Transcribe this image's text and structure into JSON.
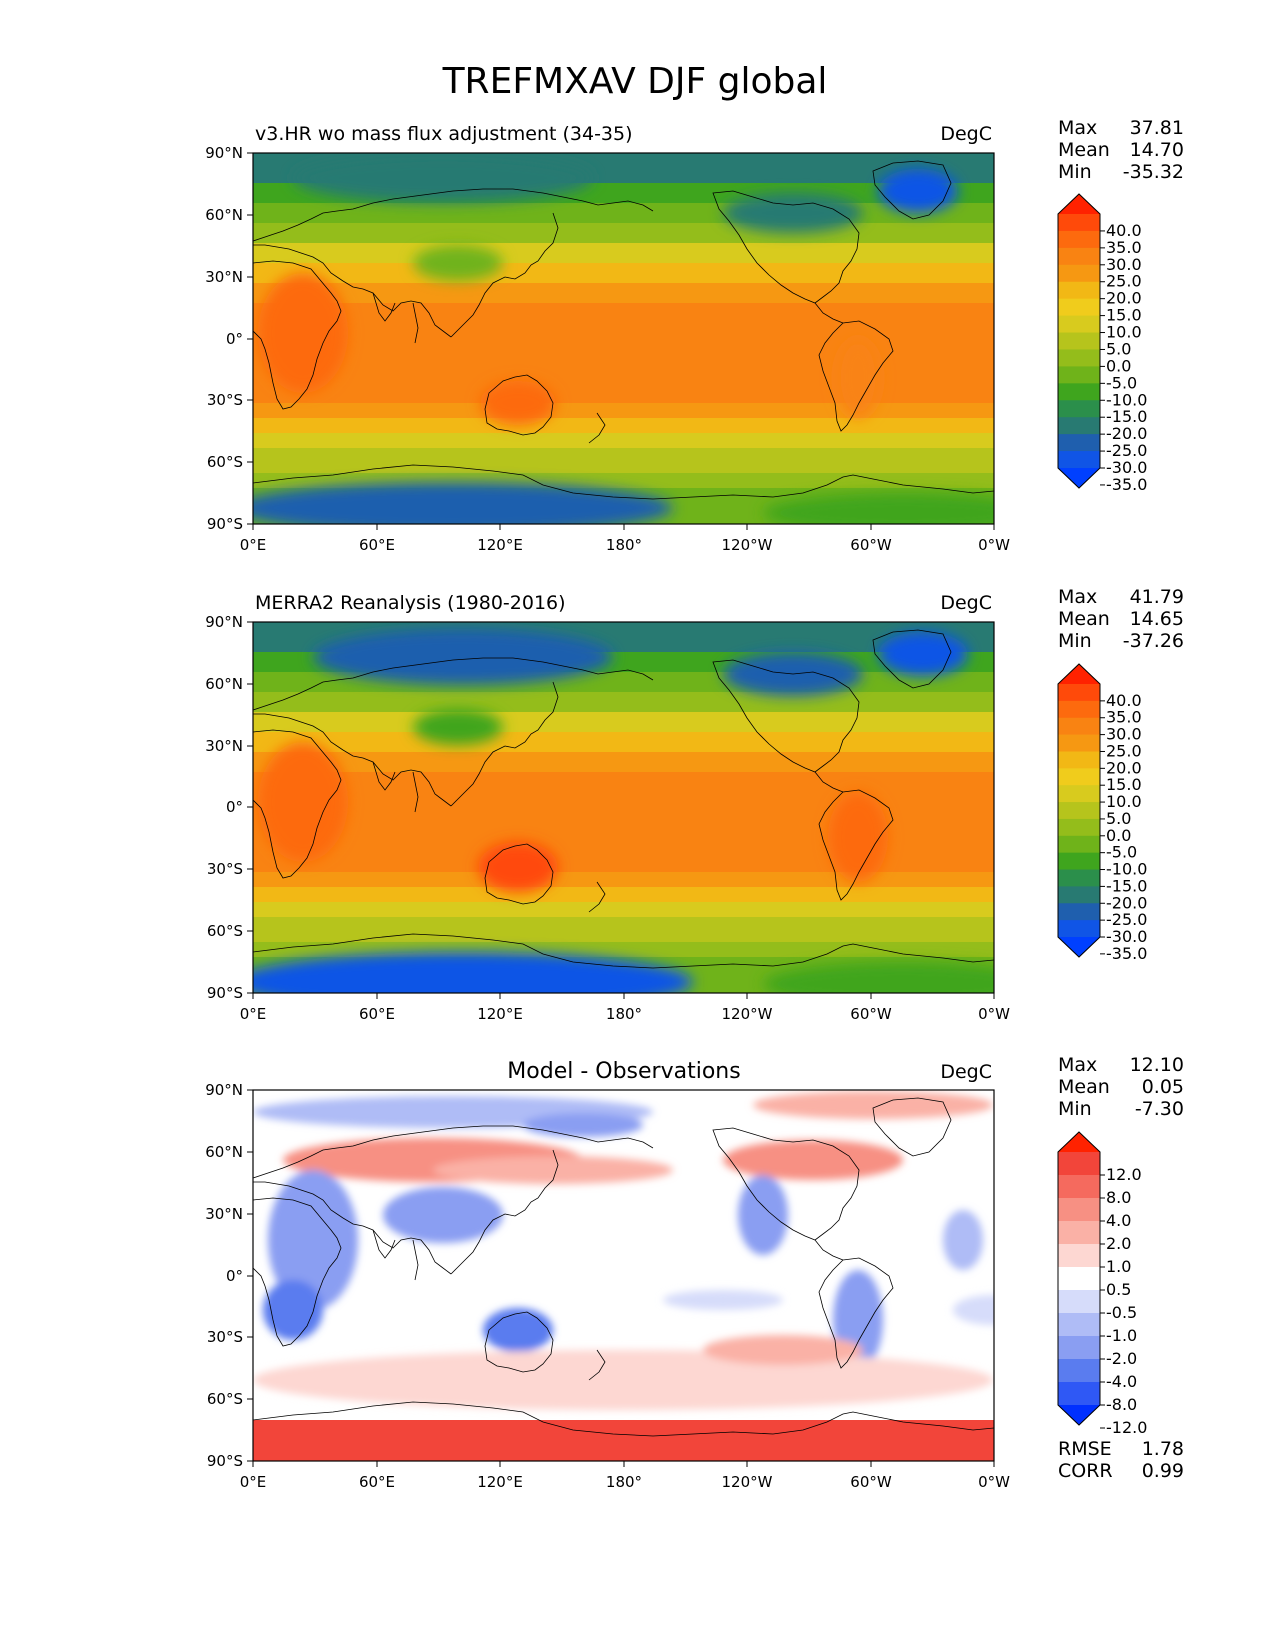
{
  "figure": {
    "title": "TREFMXAV DJF global"
  },
  "chart_data": [
    {
      "type": "heatmap",
      "left_title": "v3.HR wo mass flux adjustment (34-35)",
      "units": "DegC",
      "stats": {
        "max_label": "Max",
        "max": "37.81",
        "mean_label": "Mean",
        "mean": "14.70",
        "min_label": "Min",
        "min": "-35.32"
      },
      "colorbar": {
        "ticks": [
          "40.0",
          "35.0",
          "30.0",
          "25.0",
          "20.0",
          "15.0",
          "10.0",
          "5.0",
          "0.0",
          "-5.0",
          "-10.0",
          "-15.0",
          "-20.0",
          "-25.0",
          "-30.0",
          "-35.0"
        ],
        "colors": [
          "#ff2200",
          "#ff4a0a",
          "#fd6a0e",
          "#f98312",
          "#f69812",
          "#f2b815",
          "#f0cc1c",
          "#d8cb1e",
          "#b6c41c",
          "#94bd1b",
          "#6fb31a",
          "#3fa51e",
          "#2b8f4b",
          "#287a72",
          "#1f5fae",
          "#1055e6",
          "#0040ff"
        ]
      },
      "xticks": [
        "0°E",
        "60°E",
        "120°E",
        "180°",
        "120°W",
        "60°W",
        "0°W"
      ],
      "yticks": [
        "90°N",
        "60°N",
        "30°N",
        "0°",
        "30°S",
        "60°S",
        "90°S"
      ],
      "xlim": [
        0,
        360
      ],
      "ylim": [
        -90,
        90
      ],
      "field_description": "Temperature bands warm near equator, cold at poles; cold Greenland, Siberia, Antarctica; warm Australia, southern Africa, South America"
    },
    {
      "type": "heatmap",
      "left_title": "MERRA2 Reanalysis (1980-2016)",
      "units": "DegC",
      "stats": {
        "max_label": "Max",
        "max": "41.79",
        "mean_label": "Mean",
        "mean": "14.65",
        "min_label": "Min",
        "min": "-37.26"
      },
      "colorbar": {
        "ticks": [
          "40.0",
          "35.0",
          "30.0",
          "25.0",
          "20.0",
          "15.0",
          "10.0",
          "5.0",
          "0.0",
          "-5.0",
          "-10.0",
          "-15.0",
          "-20.0",
          "-25.0",
          "-30.0",
          "-35.0"
        ],
        "colors": [
          "#ff2200",
          "#ff4a0a",
          "#fd6a0e",
          "#f98312",
          "#f69812",
          "#f2b815",
          "#f0cc1c",
          "#d8cb1e",
          "#b6c41c",
          "#94bd1b",
          "#6fb31a",
          "#3fa51e",
          "#2b8f4b",
          "#287a72",
          "#1f5fae",
          "#1055e6",
          "#0040ff"
        ]
      },
      "xticks": [
        "0°E",
        "60°E",
        "120°E",
        "180°",
        "120°W",
        "60°W",
        "0°W"
      ],
      "yticks": [
        "90°N",
        "60°N",
        "30°N",
        "0°",
        "30°S",
        "60°S",
        "90°S"
      ],
      "xlim": [
        0,
        360
      ],
      "ylim": [
        -90,
        90
      ]
    },
    {
      "type": "heatmap",
      "center_title": "Model - Observations",
      "units": "DegC",
      "stats": {
        "max_label": "Max",
        "max": "12.10",
        "mean_label": "Mean",
        "mean": "0.05",
        "min_label": "Min",
        "min": "-7.30"
      },
      "colorbar": {
        "ticks": [
          "12.0",
          "8.0",
          "4.0",
          "2.0",
          "1.0",
          "0.5",
          "-0.5",
          "-1.0",
          "-2.0",
          "-4.0",
          "-8.0",
          "-12.0"
        ],
        "colors": [
          "#ff2200",
          "#f2453a",
          "#f56a5e",
          "#f79083",
          "#fab1a6",
          "#fdd7d2",
          "#ffffff",
          "#d6dcfa",
          "#afbcf6",
          "#8a9ef2",
          "#5a7cef",
          "#2f58f5",
          "#0030ff"
        ]
      },
      "metrics": {
        "rmse_label": "RMSE",
        "rmse": "1.78",
        "corr_label": "CORR",
        "corr": "0.99"
      },
      "xticks": [
        "0°E",
        "60°E",
        "120°E",
        "180°",
        "120°W",
        "60°W",
        "0°W"
      ],
      "yticks": [
        "90°N",
        "60°N",
        "30°N",
        "0°",
        "30°S",
        "60°S",
        "90°S"
      ],
      "xlim": [
        0,
        360
      ],
      "ylim": [
        -90,
        90
      ]
    }
  ]
}
